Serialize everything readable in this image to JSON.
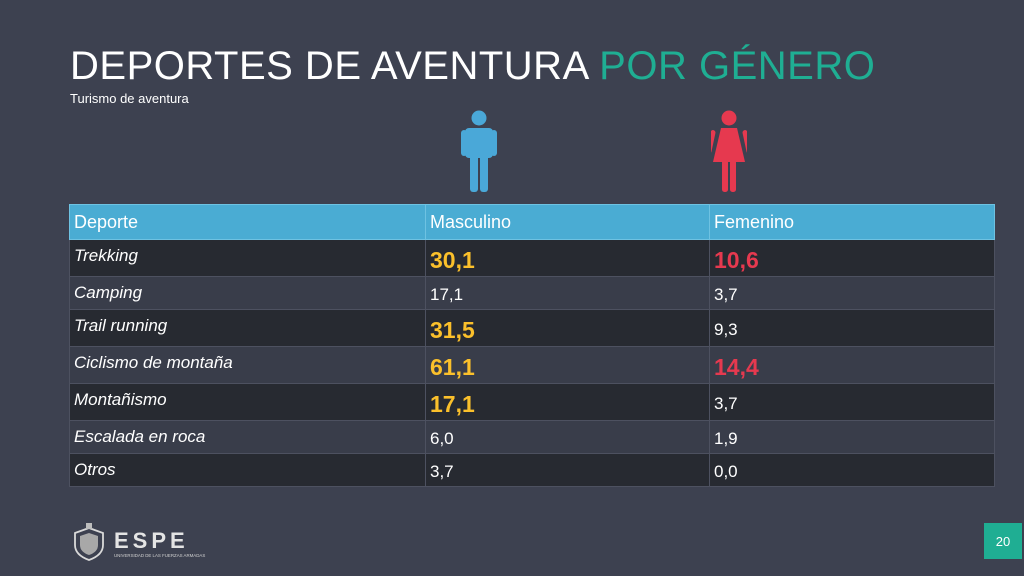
{
  "title": {
    "main": "DEPORTES DE AVENTURA",
    "accent": "POR GÉNERO"
  },
  "subtitle": "Turismo de aventura",
  "icons": {
    "male": "male-person-icon",
    "female": "female-person-icon"
  },
  "colors": {
    "background": "#3d4150",
    "accent": "#1fae93",
    "header": "#4aacd3",
    "male": "#4aa8d8",
    "female": "#e6394f",
    "highlight_male": "#fbc02b",
    "highlight_female": "#e6394f"
  },
  "table": {
    "headers": [
      "Deporte",
      "Masculino",
      "Femenino"
    ],
    "rows": [
      {
        "sport": "Trekking",
        "male": "30,1",
        "female": "10,6"
      },
      {
        "sport": "Camping",
        "male": "17,1",
        "female": "3,7"
      },
      {
        "sport": "Trail running",
        "male": "31,5",
        "female": "9,3"
      },
      {
        "sport": "Ciclismo de montaña",
        "male": "61,1",
        "female": "14,4"
      },
      {
        "sport": "Montañismo",
        "male": "17,1",
        "female": "3,7"
      },
      {
        "sport": "Escalada en roca",
        "male": "6,0",
        "female": "1,9"
      },
      {
        "sport": "Otros",
        "male": "3,7",
        "female": "0,0"
      }
    ]
  },
  "footer": {
    "logo_text": "ESPE",
    "logo_subtext": "UNIVERSIDAD DE LAS FUERZAS ARMADAS",
    "page_number": "20"
  }
}
